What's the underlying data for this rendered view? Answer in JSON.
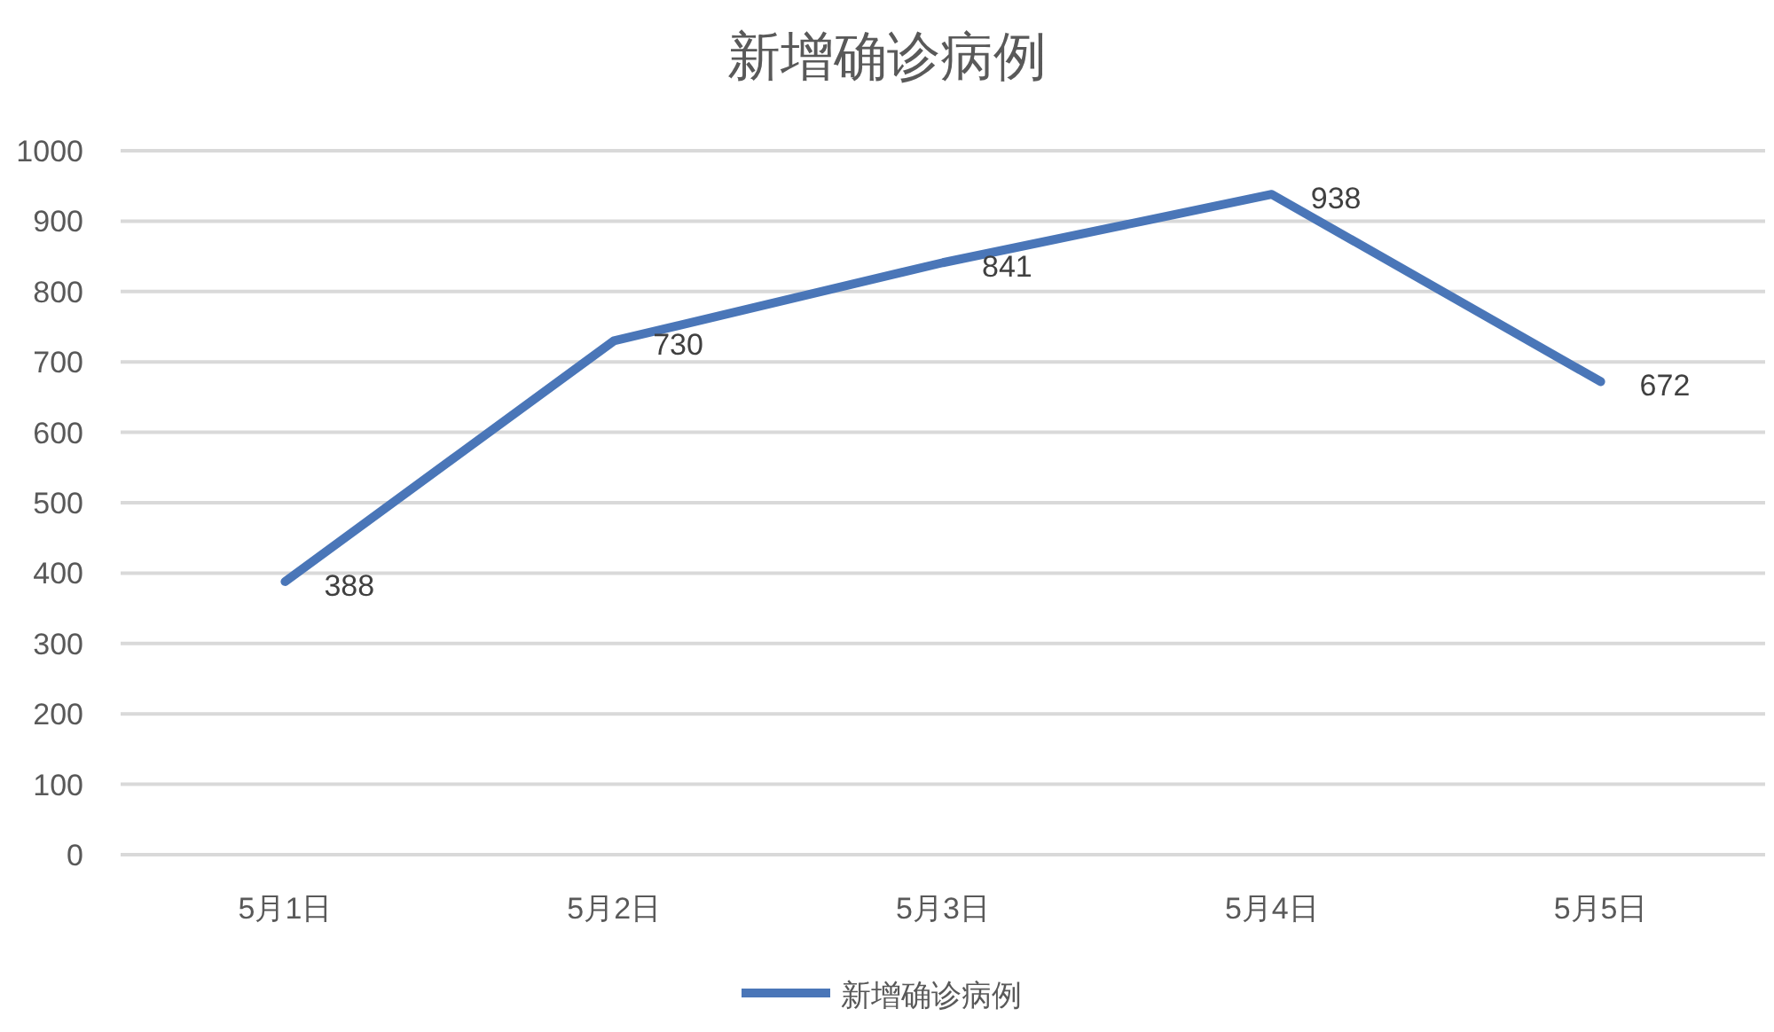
{
  "chart_data": {
    "type": "line",
    "title": "新增确诊病例",
    "categories": [
      "5月1日",
      "5月2日",
      "5月3日",
      "5月4日",
      "5月5日"
    ],
    "series": [
      {
        "name": "新增确诊病例",
        "color": "#4a76b8",
        "values": [
          388,
          730,
          841,
          938,
          672
        ]
      }
    ],
    "ylim": [
      0,
      1000
    ],
    "yticks": [
      0,
      100,
      200,
      300,
      400,
      500,
      600,
      700,
      800,
      900,
      1000
    ],
    "grid": "y",
    "legend": "bottom",
    "data_labels": true,
    "marker": "none",
    "line_style": "solid"
  }
}
